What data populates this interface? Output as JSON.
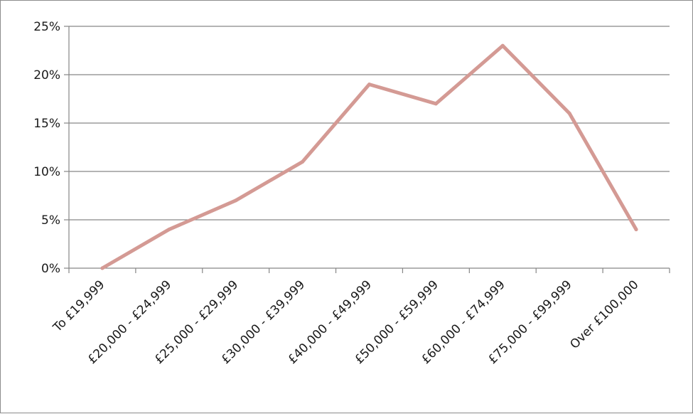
{
  "chart_data": {
    "type": "line",
    "categories": [
      "To £19,999",
      "£20,000 - £24,999",
      "£25,000 - £29,999",
      "£30,000 - £39,999",
      "£40,000 - £49,999",
      "£50,000 - £59,999",
      "£60,000 - £74,999",
      "£75,000 - £99,999",
      "Over £100,000"
    ],
    "series": [
      {
        "values": [
          0,
          4,
          7,
          11,
          19,
          17,
          23,
          16,
          4
        ],
        "color": "#d49a94"
      }
    ],
    "ylim": [
      0,
      25
    ],
    "yticks": [
      "0%",
      "5%",
      "10%",
      "15%",
      "20%",
      "25%"
    ],
    "grid": true,
    "legend": "none"
  }
}
